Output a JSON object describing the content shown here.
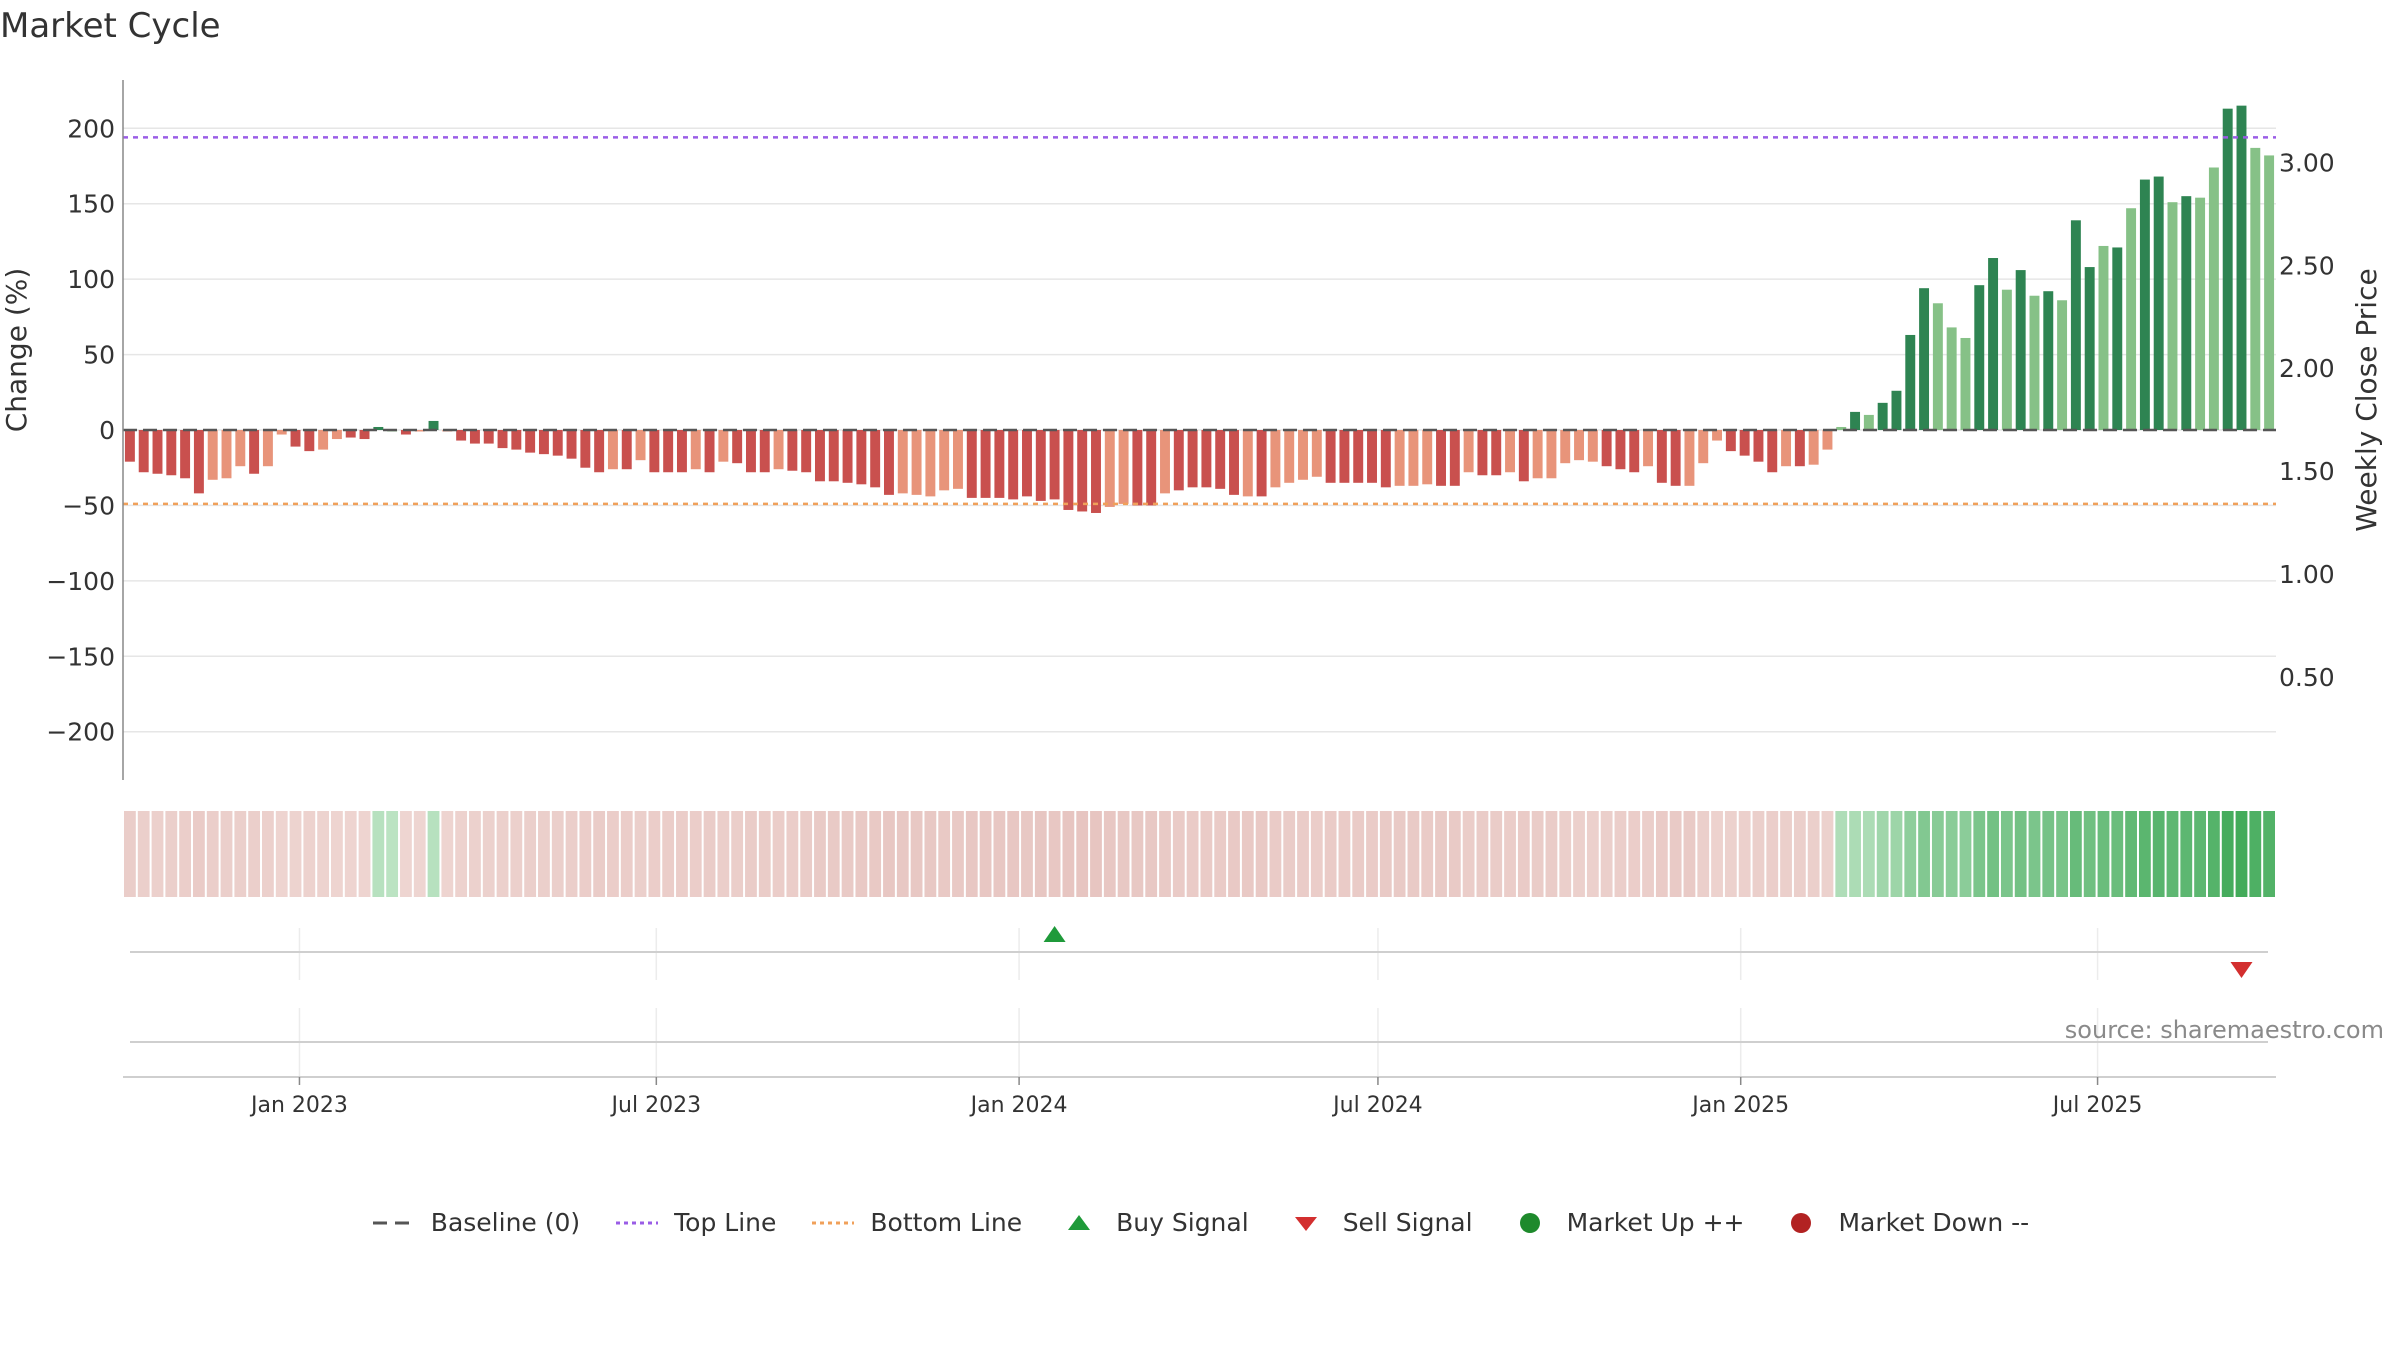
{
  "title": "Market Cycle",
  "source_text": "source: sharemaestro.com",
  "colors": {
    "down_dark": "#c9504e",
    "down_light": "#e8947a",
    "up_dark": "#2e8452",
    "up_light": "#86c187",
    "top_line": "#9a5ce6",
    "bottom_line": "#f0a05a",
    "buy": "#1f9a3a",
    "sell": "#d32f2f",
    "market_up": "#1e8a2c",
    "market_down": "#b22222",
    "baseline": "#555555"
  },
  "legend": [
    {
      "label": "Baseline (0)",
      "icon": "dash-line-icon",
      "color": "#555555"
    },
    {
      "label": "Top Line",
      "icon": "dotted-line-icon",
      "color": "#9a5ce6"
    },
    {
      "label": "Bottom Line",
      "icon": "dotted-line-icon",
      "color": "#f0a05a"
    },
    {
      "label": "Buy Signal",
      "icon": "triangle-up-icon",
      "color": "#1f9a3a"
    },
    {
      "label": "Sell Signal",
      "icon": "triangle-down-icon",
      "color": "#d32f2f"
    },
    {
      "label": "Market Up ++",
      "icon": "circle-icon",
      "color": "#1e8a2c"
    },
    {
      "label": "Market Down --",
      "icon": "circle-icon",
      "color": "#b22222"
    }
  ],
  "chart_data": {
    "type": "bar",
    "title": "Market Cycle",
    "ylabel": "Change (%)",
    "y2label": "Weekly Close Price",
    "ylim": [
      -232,
      232
    ],
    "y2lim": [
      0.0,
      3.4
    ],
    "yticks": [
      200,
      150,
      100,
      50,
      0,
      -50,
      -100,
      -150,
      -200
    ],
    "ytick_labels": [
      "200",
      "150",
      "100",
      "50",
      "0",
      "−50",
      "−100",
      "−150",
      "−200"
    ],
    "y2ticks": [
      3.0,
      2.5,
      2.0,
      1.5,
      1.0,
      0.5
    ],
    "y2tick_labels": [
      "3.00",
      "2.50",
      "2.00",
      "1.50",
      "1.00",
      "0.50"
    ],
    "x_start": "2022-10-07",
    "x_end": "2025-09-26",
    "xticks": [
      "2023-01-01",
      "2023-07-01",
      "2024-01-01",
      "2024-07-01",
      "2025-01-01",
      "2025-07-01"
    ],
    "xtick_labels": [
      "Jan 2023",
      "Jul 2023",
      "Jan 2024",
      "Jul 2024",
      "Jan 2025",
      "Jul 2025"
    ],
    "top_line": 194,
    "bottom_line": -49,
    "baseline": 0,
    "grid": true,
    "legend_position": "bottom-center",
    "series": [
      {
        "values": [
          -21,
          -28,
          -29,
          -30,
          -32,
          -42,
          -33,
          -32,
          -24,
          -29,
          -24,
          -3,
          -11,
          -14,
          -13,
          -6,
          -5,
          -6,
          2,
          0,
          -3,
          -1,
          6,
          -1,
          -7,
          -9,
          -9,
          -12,
          -13,
          -15,
          -16,
          -17,
          -19,
          -25,
          -28,
          -26,
          -26,
          -20,
          -28,
          -28,
          -28,
          -26,
          -28,
          -21,
          -22,
          -28,
          -28,
          -26,
          -27,
          -28,
          -34,
          -34,
          -35,
          -36,
          -38,
          -43,
          -42,
          -43,
          -44,
          -40,
          -39,
          -45,
          -45,
          -45,
          -46,
          -44,
          -47,
          -46,
          -53,
          -54,
          -55,
          -51,
          -49,
          -50,
          -50,
          -42,
          -40,
          -38,
          -38,
          -39,
          -43,
          -44,
          -44,
          -38,
          -35,
          -33,
          -31,
          -35,
          -35,
          -35,
          -35,
          -38,
          -37,
          -37,
          -36,
          -37,
          -37,
          -28,
          -30,
          -30,
          -28,
          -34,
          -32,
          -32,
          -22,
          -20,
          -21,
          -24,
          -26,
          -28,
          -24,
          -35,
          -37,
          -37,
          -22,
          -7,
          -14,
          -17,
          -21,
          -28,
          -24,
          -24,
          -23,
          -13,
          2,
          12,
          10,
          18,
          26,
          63,
          94,
          84,
          68,
          61,
          96,
          114,
          93,
          106,
          89,
          92,
          86,
          139,
          108,
          122,
          121,
          147,
          166,
          168,
          151,
          155,
          154,
          174,
          213,
          215,
          187,
          182
        ],
        "shade": [
          "d",
          "d",
          "d",
          "d",
          "d",
          "d",
          "l",
          "l",
          "l",
          "d",
          "l",
          "l",
          "d",
          "d",
          "l",
          "l",
          "d",
          "d",
          "d",
          "l",
          "d",
          "l",
          "d",
          "l",
          "d",
          "d",
          "d",
          "d",
          "d",
          "d",
          "d",
          "d",
          "d",
          "d",
          "d",
          "l",
          "d",
          "l",
          "d",
          "d",
          "d",
          "l",
          "d",
          "l",
          "d",
          "d",
          "d",
          "l",
          "d",
          "d",
          "d",
          "d",
          "d",
          "d",
          "d",
          "d",
          "l",
          "l",
          "l",
          "l",
          "l",
          "d",
          "d",
          "d",
          "d",
          "d",
          "d",
          "d",
          "d",
          "d",
          "d",
          "l",
          "l",
          "d",
          "d",
          "l",
          "d",
          "d",
          "d",
          "d",
          "d",
          "l",
          "d",
          "l",
          "l",
          "l",
          "l",
          "d",
          "d",
          "d",
          "d",
          "d",
          "l",
          "l",
          "l",
          "d",
          "d",
          "l",
          "d",
          "d",
          "l",
          "d",
          "l",
          "l",
          "l",
          "l",
          "l",
          "d",
          "d",
          "d",
          "l",
          "d",
          "d",
          "l",
          "l",
          "l",
          "d",
          "d",
          "d",
          "d",
          "l",
          "d",
          "l",
          "l",
          "l",
          "d",
          "l",
          "d",
          "d",
          "d",
          "d",
          "l",
          "l",
          "l",
          "d",
          "d",
          "l",
          "d",
          "l",
          "d",
          "l",
          "d",
          "d",
          "l",
          "d",
          "l",
          "d",
          "d",
          "l",
          "d",
          "l",
          "l",
          "d",
          "d",
          "l",
          "l"
        ]
      }
    ],
    "market_strength": [
      -0.35,
      -0.3,
      -0.28,
      -0.3,
      -0.32,
      -0.38,
      -0.33,
      -0.3,
      -0.3,
      -0.3,
      -0.28,
      -0.2,
      -0.22,
      -0.24,
      -0.22,
      -0.2,
      -0.2,
      -0.2,
      0.15,
      0.12,
      -0.18,
      -0.18,
      0.15,
      -0.2,
      -0.24,
      -0.26,
      -0.26,
      -0.28,
      -0.28,
      -0.3,
      -0.3,
      -0.3,
      -0.32,
      -0.34,
      -0.36,
      -0.34,
      -0.34,
      -0.3,
      -0.34,
      -0.34,
      -0.34,
      -0.34,
      -0.36,
      -0.32,
      -0.32,
      -0.36,
      -0.36,
      -0.34,
      -0.34,
      -0.36,
      -0.4,
      -0.4,
      -0.4,
      -0.42,
      -0.42,
      -0.46,
      -0.44,
      -0.44,
      -0.44,
      -0.42,
      -0.42,
      -0.46,
      -0.46,
      -0.46,
      -0.46,
      -0.44,
      -0.48,
      -0.46,
      -0.5,
      -0.5,
      -0.5,
      -0.46,
      -0.44,
      -0.44,
      -0.44,
      -0.4,
      -0.38,
      -0.38,
      -0.38,
      -0.38,
      -0.42,
      -0.42,
      -0.42,
      -0.38,
      -0.36,
      -0.36,
      -0.34,
      -0.38,
      -0.38,
      -0.38,
      -0.38,
      -0.4,
      -0.4,
      -0.4,
      -0.38,
      -0.4,
      -0.4,
      -0.34,
      -0.36,
      -0.36,
      -0.34,
      -0.38,
      -0.36,
      -0.36,
      -0.3,
      -0.28,
      -0.28,
      -0.3,
      -0.32,
      -0.34,
      -0.32,
      -0.38,
      -0.4,
      -0.4,
      -0.3,
      -0.24,
      -0.26,
      -0.28,
      -0.3,
      -0.32,
      -0.3,
      -0.3,
      -0.3,
      -0.26,
      0.2,
      0.22,
      0.22,
      0.3,
      0.32,
      0.42,
      0.5,
      0.46,
      0.45,
      0.44,
      0.55,
      0.6,
      0.55,
      0.6,
      0.55,
      0.58,
      0.56,
      0.68,
      0.62,
      0.66,
      0.66,
      0.72,
      0.76,
      0.78,
      0.74,
      0.75,
      0.75,
      0.8,
      0.9,
      0.92,
      0.85,
      0.82
    ],
    "buy_signals": [
      "2024-01-19"
    ],
    "sell_signals": [
      "2025-09-12"
    ]
  }
}
